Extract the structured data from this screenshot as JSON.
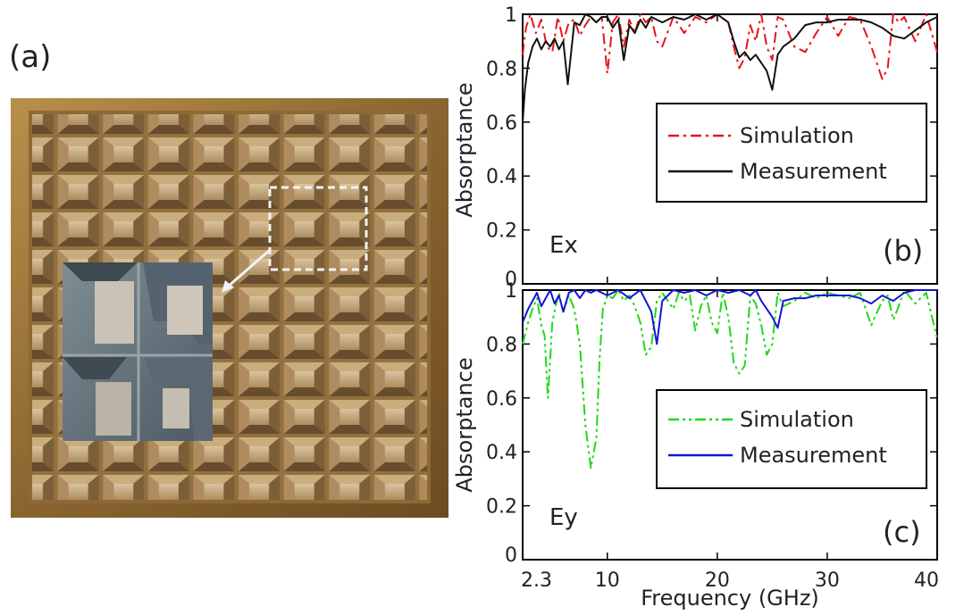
{
  "panel_a": {
    "label": "(a)"
  },
  "chart_data": [
    {
      "type": "line",
      "panel_label": "(b)",
      "polarization": "Ex",
      "xlabel": "",
      "ylabel": "Absorptance",
      "xlim": [
        2.3,
        40
      ],
      "ylim": [
        0,
        1
      ],
      "x_ticks": [
        "2.3",
        "10",
        "20",
        "30",
        "40"
      ],
      "y_ticks": [
        "0",
        "0.2",
        "0.4",
        "0.6",
        "0.8",
        "1"
      ],
      "legend_position": "center-right",
      "series": [
        {
          "name": "Simulation",
          "color": "#e8141b",
          "style": "dash-dot",
          "x": [
            2.3,
            2.6,
            3,
            3.5,
            4,
            4.5,
            5,
            5.5,
            6,
            6.5,
            7,
            7.5,
            8,
            8.5,
            9,
            9.5,
            10,
            10.5,
            11,
            11.5,
            12,
            12.5,
            13,
            13.5,
            14,
            14.5,
            15,
            16,
            17,
            18,
            19,
            20,
            21,
            21.5,
            22,
            22.5,
            23,
            23.5,
            24,
            24.5,
            25,
            25.5,
            26,
            27,
            28,
            29,
            30,
            31,
            32,
            33,
            34,
            35,
            35.5,
            36,
            36.5,
            37,
            38,
            39,
            40
          ],
          "y": [
            0.85,
            0.95,
            1.0,
            0.93,
            0.98,
            0.88,
            0.86,
            0.99,
            0.9,
            0.97,
            0.98,
            0.92,
            0.96,
            0.99,
            0.97,
            0.99,
            0.78,
            0.97,
            1.0,
            0.88,
            0.98,
            0.93,
            1.0,
            0.97,
            0.99,
            0.9,
            0.88,
            0.99,
            0.93,
            0.99,
            0.97,
            1.0,
            0.97,
            0.88,
            0.8,
            0.84,
            0.96,
            0.9,
            1.0,
            0.88,
            0.83,
            0.99,
            0.98,
            0.88,
            0.86,
            0.93,
            0.99,
            0.92,
            0.99,
            0.98,
            0.88,
            0.76,
            0.8,
            1.0,
            0.97,
            0.99,
            0.9,
            1.0,
            0.86
          ]
        },
        {
          "name": "Measurement",
          "color": "#111111",
          "style": "solid",
          "x": [
            2.3,
            2.5,
            2.8,
            3.2,
            3.6,
            4.0,
            4.4,
            4.8,
            5.2,
            5.6,
            6.0,
            6.4,
            7.0,
            7.5,
            8.0,
            8.5,
            9.0,
            9.5,
            10.0,
            10.5,
            11.0,
            11.5,
            12.0,
            12.5,
            13.0,
            13.5,
            14.0,
            15.0,
            16.0,
            17.0,
            18.0,
            19.0,
            20.0,
            21.0,
            21.5,
            22.0,
            22.5,
            23.0,
            23.5,
            24.0,
            24.5,
            25.0,
            25.5,
            26.0,
            27.0,
            28.0,
            29.0,
            30.0,
            31.0,
            32.0,
            33.0,
            34.0,
            35.0,
            36.0,
            37.0,
            38.0,
            39.0,
            40.0
          ],
          "y": [
            0.6,
            0.72,
            0.82,
            0.88,
            0.91,
            0.87,
            0.9,
            0.88,
            0.91,
            0.87,
            0.9,
            0.74,
            0.97,
            0.96,
            1.0,
            0.99,
            0.97,
            0.99,
            0.99,
            0.95,
            0.98,
            0.83,
            0.96,
            0.93,
            0.98,
            0.95,
            0.99,
            0.97,
            0.99,
            0.98,
            1.0,
            0.98,
            1.0,
            0.97,
            0.9,
            0.84,
            0.86,
            0.83,
            0.85,
            0.82,
            0.79,
            0.72,
            0.85,
            0.88,
            0.91,
            0.96,
            0.97,
            0.97,
            0.98,
            0.98,
            0.98,
            0.97,
            0.95,
            0.92,
            0.91,
            0.94,
            0.97,
            0.99
          ]
        }
      ]
    },
    {
      "type": "line",
      "panel_label": "(c)",
      "polarization": "Ey",
      "xlabel": "Frequency (GHz)",
      "ylabel": "Absorptance",
      "xlim": [
        2.3,
        40
      ],
      "ylim": [
        0,
        1
      ],
      "x_ticks": [
        "2.3",
        "10",
        "20",
        "30",
        "40"
      ],
      "y_ticks": [
        "0",
        "0.2",
        "0.4",
        "0.6",
        "0.8",
        "1"
      ],
      "legend_position": "center-right",
      "series": [
        {
          "name": "Simulation",
          "color": "#21d81a",
          "style": "dash-dot-dot",
          "x": [
            2.3,
            2.8,
            3.2,
            3.6,
            4.0,
            4.3,
            4.6,
            5.0,
            5.3,
            5.6,
            6.0,
            6.5,
            7.0,
            7.5,
            8.0,
            8.5,
            9.0,
            9.3,
            9.6,
            10.0,
            10.5,
            11.0,
            11.5,
            12.0,
            12.5,
            13.0,
            13.5,
            14.0,
            14.5,
            15.0,
            16.0,
            16.5,
            17.0,
            17.5,
            18.0,
            18.5,
            19.0,
            19.5,
            20.0,
            20.5,
            21.0,
            21.5,
            22.0,
            22.5,
            23.0,
            23.5,
            24.0,
            24.5,
            25.0,
            25.5,
            26.0,
            27.0,
            28.0,
            29.0,
            30.0,
            31.0,
            32.0,
            33.0,
            34.0,
            35.0,
            35.5,
            36.0,
            36.5,
            37.0,
            38.0,
            39.0,
            40.0
          ],
          "y": [
            0.8,
            0.88,
            0.93,
            0.97,
            0.87,
            0.83,
            0.6,
            0.88,
            0.94,
            0.99,
            0.92,
            0.98,
            0.93,
            0.8,
            0.5,
            0.34,
            0.45,
            0.75,
            0.93,
            0.98,
            0.97,
            1.0,
            0.96,
            0.98,
            0.94,
            0.88,
            0.76,
            0.79,
            0.96,
            0.99,
            0.93,
            0.99,
            0.96,
            0.98,
            0.85,
            0.94,
            0.98,
            0.88,
            0.84,
            0.99,
            0.9,
            0.73,
            0.69,
            0.72,
            0.98,
            0.95,
            0.87,
            0.76,
            0.8,
            0.99,
            0.94,
            0.96,
            0.99,
            0.97,
            0.99,
            0.98,
            0.97,
            0.99,
            0.87,
            0.96,
            0.98,
            0.89,
            0.94,
            1.0,
            0.95,
            0.99,
            0.82
          ]
        },
        {
          "name": "Measurement",
          "color": "#1414d6",
          "style": "solid",
          "x": [
            2.3,
            2.8,
            3.2,
            3.6,
            4.0,
            4.4,
            4.8,
            5.2,
            5.6,
            6.0,
            6.5,
            7.0,
            7.5,
            8.0,
            8.5,
            9.0,
            10.0,
            11.0,
            12.0,
            13.0,
            14.0,
            14.5,
            15.0,
            16.0,
            17.0,
            18.0,
            19.0,
            20.0,
            21.0,
            22.0,
            23.0,
            23.5,
            24.0,
            24.5,
            25.0,
            25.5,
            26.0,
            27.0,
            28.0,
            29.0,
            30.0,
            31.0,
            32.0,
            33.0,
            34.0,
            35.0,
            36.0,
            37.0,
            38.0,
            39.0,
            40.0
          ],
          "y": [
            0.88,
            0.93,
            0.96,
            0.99,
            0.94,
            0.97,
            1.0,
            0.95,
            0.98,
            0.92,
            0.99,
            1.0,
            0.97,
            1.0,
            0.99,
            1.0,
            0.98,
            1.0,
            0.97,
            1.0,
            0.92,
            0.8,
            0.96,
            1.0,
            0.99,
            1.0,
            0.98,
            1.0,
            0.99,
            1.0,
            0.98,
            1.0,
            0.96,
            0.93,
            0.9,
            0.86,
            0.96,
            0.97,
            0.97,
            0.98,
            0.98,
            0.98,
            0.98,
            0.97,
            0.95,
            0.98,
            0.96,
            0.99,
            1.0,
            1.0,
            1.0
          ]
        }
      ]
    }
  ]
}
